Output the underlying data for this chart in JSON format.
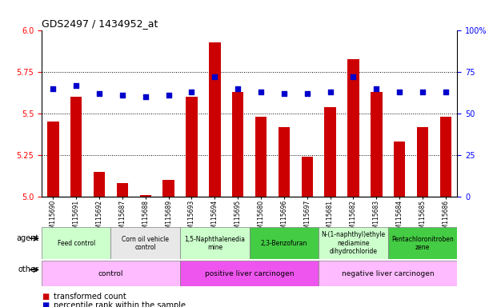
{
  "title": "GDS2497 / 1434952_at",
  "samples": [
    "GSM115690",
    "GSM115691",
    "GSM115692",
    "GSM115687",
    "GSM115688",
    "GSM115689",
    "GSM115693",
    "GSM115694",
    "GSM115695",
    "GSM115680",
    "GSM115696",
    "GSM115697",
    "GSM115681",
    "GSM115682",
    "GSM115683",
    "GSM115684",
    "GSM115685",
    "GSM115686"
  ],
  "bar_values": [
    5.45,
    5.6,
    5.15,
    5.08,
    5.01,
    5.1,
    5.6,
    5.93,
    5.63,
    5.48,
    5.42,
    5.24,
    5.54,
    5.83,
    5.63,
    5.33,
    5.42,
    5.48
  ],
  "dot_values": [
    65,
    67,
    62,
    61,
    60,
    61,
    63,
    72,
    65,
    63,
    62,
    62,
    63,
    72,
    65,
    63,
    63,
    63
  ],
  "ylim_left": [
    5.0,
    6.0
  ],
  "ylim_right": [
    0,
    100
  ],
  "yticks_left": [
    5.0,
    5.25,
    5.5,
    5.75,
    6.0
  ],
  "yticks_right": [
    0,
    25,
    50,
    75,
    100
  ],
  "bar_color": "#cc0000",
  "dot_color": "#0000cc",
  "agent_groups": [
    {
      "label": "Feed control",
      "start": 0,
      "end": 3,
      "color": "#ccffcc"
    },
    {
      "label": "Corn oil vehicle\ncontrol",
      "start": 3,
      "end": 6,
      "color": "#e8e8e8"
    },
    {
      "label": "1,5-Naphthalenedia\nmine",
      "start": 6,
      "end": 9,
      "color": "#ccffcc"
    },
    {
      "label": "2,3-Benzofuran",
      "start": 9,
      "end": 12,
      "color": "#44cc44"
    },
    {
      "label": "N-(1-naphthyl)ethyle\nnediamine\ndihydrochloride",
      "start": 12,
      "end": 15,
      "color": "#ccffcc"
    },
    {
      "label": "Pentachloronitroben\nzene",
      "start": 15,
      "end": 18,
      "color": "#44cc44"
    }
  ],
  "other_groups": [
    {
      "label": "control",
      "start": 0,
      "end": 6,
      "color": "#ffbbff"
    },
    {
      "label": "positive liver carcinogen",
      "start": 6,
      "end": 12,
      "color": "#ee55ee"
    },
    {
      "label": "negative liver carcinogen",
      "start": 12,
      "end": 18,
      "color": "#ffbbff"
    }
  ]
}
